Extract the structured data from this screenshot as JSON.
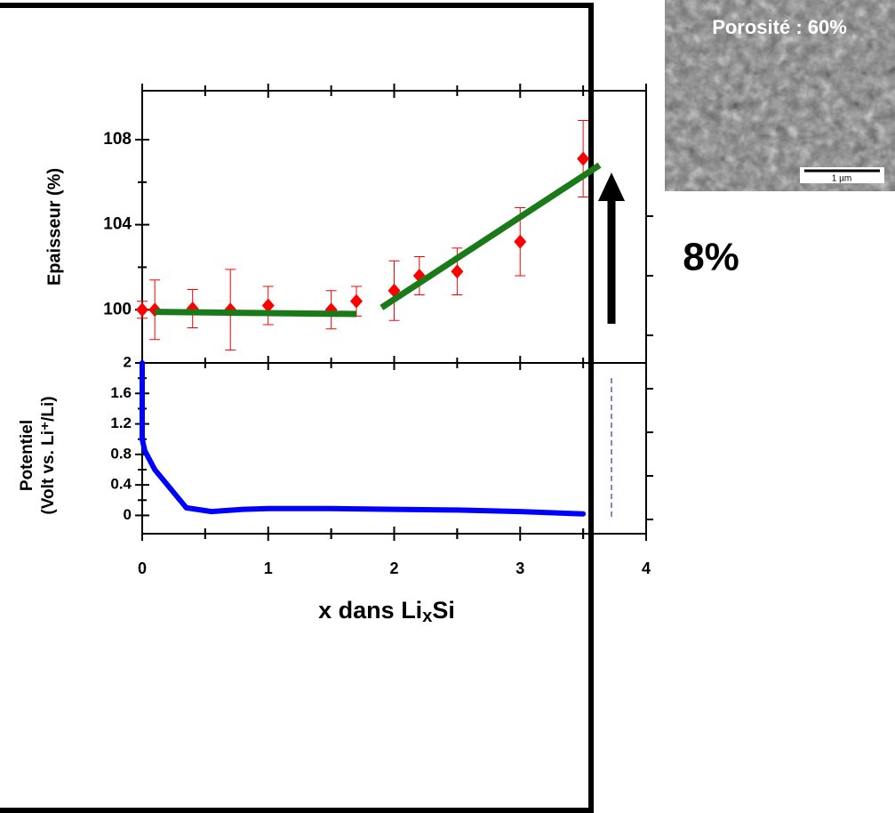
{
  "chart_data": [
    {
      "type": "scatter",
      "ylabel": "Epaisseur  (%)",
      "xlim": [
        0,
        4
      ],
      "ylim": [
        97.5,
        110.3
      ],
      "yticks": [
        100,
        104,
        108
      ],
      "points": {
        "color": "#ff0000",
        "x": [
          0,
          0.1,
          0.4,
          0.7,
          1.0,
          1.5,
          1.7,
          2.0,
          2.2,
          2.5,
          3.0,
          3.5
        ],
        "values": [
          100,
          100,
          100.05,
          100,
          100.2,
          100,
          100.4,
          100.9,
          101.6,
          101.8,
          103.2,
          107.1
        ],
        "errors": [
          0.4,
          1.4,
          0.9,
          1.9,
          0.9,
          0.9,
          0.7,
          1.4,
          0.9,
          1.1,
          1.6,
          1.8
        ]
      },
      "fits": [
        {
          "color": "#1a7a1a",
          "x": [
            0.1,
            1.7
          ],
          "values": [
            99.9,
            99.8
          ]
        },
        {
          "color": "#1a7a1a",
          "x": [
            1.9,
            3.63
          ],
          "values": [
            100.1,
            106.8
          ]
        }
      ]
    },
    {
      "type": "line",
      "ylabel": [
        "Potentiel",
        "(Volt vs. Li⁺/Li)"
      ],
      "xlabel": [
        "x dans Li",
        "x",
        "Si"
      ],
      "xlim": [
        0,
        4
      ],
      "xticks": [
        0,
        1,
        2,
        3,
        4
      ],
      "ylim": [
        -0.24,
        2
      ],
      "yticks": [
        0,
        0.4,
        0.8,
        1.2,
        1.6,
        2
      ],
      "color": "#0000ff",
      "x": [
        0,
        0,
        0.02,
        0.1,
        0.2,
        0.35,
        0.55,
        0.8,
        1.0,
        1.5,
        2.0,
        2.5,
        3.0,
        3.5
      ],
      "values": [
        2,
        1.0,
        0.85,
        0.6,
        0.4,
        0.1,
        0.05,
        0.08,
        0.09,
        0.09,
        0.08,
        0.07,
        0.05,
        0.02
      ]
    }
  ],
  "annotations": {
    "increase": "8%",
    "image_label": "Porosité : 60%",
    "scale_bar": "1 µm"
  }
}
